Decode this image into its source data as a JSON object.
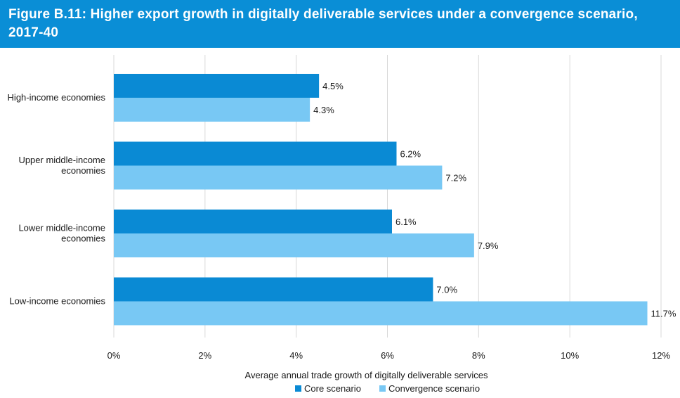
{
  "header": {
    "title": "Figure B.11: Higher export growth in digitally deliverable services under a convergence scenario, 2017-40"
  },
  "colors": {
    "header_bg": "#0a8ed6",
    "core": "#0a8ad4",
    "convergence": "#78c8f4",
    "grid": "#d9d9d9"
  },
  "chart_data": {
    "type": "bar",
    "orientation": "horizontal",
    "categories": [
      [
        "High-income economies"
      ],
      [
        "Upper middle-income",
        "economies"
      ],
      [
        "Lower middle-income",
        "economies"
      ],
      [
        "Low-income economies"
      ]
    ],
    "series": [
      {
        "name": "Core scenario",
        "values": [
          4.5,
          6.2,
          6.1,
          7.0
        ],
        "labels": [
          "4.5%",
          "6.2%",
          "6.1%",
          "7.0%"
        ]
      },
      {
        "name": "Convergence scenario",
        "values": [
          4.3,
          7.2,
          7.9,
          11.7
        ],
        "labels": [
          "4.3%",
          "7.2%",
          "7.9%",
          "11.7%"
        ]
      }
    ],
    "xlabel": "Average annual trade growth of digitally deliverable services",
    "xlim": [
      0,
      12
    ],
    "xticks": [
      0,
      2,
      4,
      6,
      8,
      10,
      12
    ],
    "xtick_labels": [
      "0%",
      "2%",
      "4%",
      "6%",
      "8%",
      "10%",
      "12%"
    ],
    "grid": "vertical",
    "legend_position": "bottom"
  }
}
